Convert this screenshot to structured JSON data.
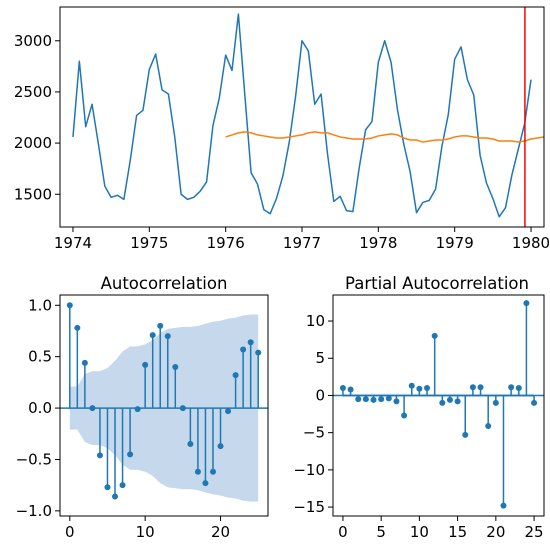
{
  "chart_data": [
    {
      "type": "line",
      "title": "",
      "xlabel": "",
      "ylabel": "",
      "xlim": [
        1973.83,
        1980.17
      ],
      "ylim": [
        1180,
        3330
      ],
      "x_ticks": [
        {
          "value": 1974,
          "label": "1974"
        },
        {
          "value": 1975,
          "label": "1975"
        },
        {
          "value": 1976,
          "label": "1976"
        },
        {
          "value": 1977,
          "label": "1977"
        },
        {
          "value": 1978,
          "label": "1978"
        },
        {
          "value": 1979,
          "label": "1979"
        },
        {
          "value": 1980,
          "label": "1980"
        }
      ],
      "y_ticks": [
        {
          "value": 1500,
          "label": "1500"
        },
        {
          "value": 2000,
          "label": "2000"
        },
        {
          "value": 2500,
          "label": "2500"
        },
        {
          "value": 3000,
          "label": "3000"
        }
      ],
      "vline": {
        "x": 1979.92,
        "color": "#ff0000"
      },
      "series": [
        {
          "color": "#1f77b4",
          "x_start": 1974.0,
          "x_step": 0.08333,
          "values": [
            2060,
            2800,
            2160,
            2380,
            1990,
            1580,
            1470,
            1490,
            1450,
            1830,
            2270,
            2320,
            2720,
            2870,
            2520,
            2480,
            2060,
            1500,
            1450,
            1470,
            1530,
            1620,
            2170,
            2440,
            2860,
            2710,
            3260,
            2480,
            1710,
            1600,
            1350,
            1310,
            1460,
            1680,
            2010,
            2460,
            3000,
            2900,
            2380,
            2480,
            1900,
            1430,
            1480,
            1340,
            1330,
            1760,
            2130,
            2210,
            2790,
            3000,
            2790,
            2330,
            1990,
            1720,
            1320,
            1420,
            1440,
            1550,
            1970,
            2280,
            2820,
            2940,
            2620,
            2470,
            1880,
            1610,
            1460,
            1280,
            1370,
            1690,
            1940,
            2190,
            2620
          ]
        },
        {
          "color": "#ff7f0e",
          "x_start": 1976.0,
          "x_step": 0.08333,
          "values": [
            2060,
            2080,
            2100,
            2110,
            2100,
            2080,
            2070,
            2060,
            2050,
            2050,
            2060,
            2070,
            2080,
            2100,
            2110,
            2100,
            2100,
            2080,
            2060,
            2050,
            2040,
            2040,
            2040,
            2050,
            2070,
            2080,
            2090,
            2080,
            2050,
            2030,
            2030,
            2010,
            2020,
            2030,
            2030,
            2040,
            2060,
            2070,
            2070,
            2060,
            2050,
            2050,
            2040,
            2020,
            2020,
            2020,
            2010,
            2020,
            2040,
            2050,
            2060
          ]
        }
      ]
    },
    {
      "type": "stem",
      "title": "Autocorrelation",
      "xlim": [
        -1.3,
        26.3
      ],
      "ylim": [
        -1.05,
        1.1
      ],
      "x_ticks": [
        {
          "value": 0,
          "label": "0"
        },
        {
          "value": 10,
          "label": "10"
        },
        {
          "value": 20,
          "label": "20"
        }
      ],
      "y_ticks": [
        {
          "value": -1.0,
          "label": "−1.0"
        },
        {
          "value": -0.5,
          "label": "−0.5"
        },
        {
          "value": 0.0,
          "label": "0.0"
        },
        {
          "value": 0.5,
          "label": "0.5"
        },
        {
          "value": 1.0,
          "label": "1.0"
        }
      ],
      "color": "#1f77b4",
      "confidence_color": "#c6d9ec",
      "lags": [
        0,
        1,
        2,
        3,
        4,
        5,
        6,
        7,
        8,
        9,
        10,
        11,
        12,
        13,
        14,
        15,
        16,
        17,
        18,
        19,
        20,
        21,
        22,
        23,
        24,
        25
      ],
      "values": [
        1.0,
        0.78,
        0.44,
        0.0,
        -0.46,
        -0.77,
        -0.86,
        -0.75,
        -0.45,
        -0.01,
        0.42,
        0.71,
        0.8,
        0.7,
        0.4,
        0.0,
        -0.35,
        -0.62,
        -0.73,
        -0.62,
        -0.37,
        -0.03,
        0.32,
        0.57,
        0.64,
        0.54
      ],
      "confidence_band": [
        0.21,
        0.21,
        0.33,
        0.36,
        0.36,
        0.39,
        0.46,
        0.55,
        0.6,
        0.6,
        0.62,
        0.66,
        0.73,
        0.77,
        0.78,
        0.79,
        0.79,
        0.8,
        0.82,
        0.84,
        0.85,
        0.87,
        0.88,
        0.9,
        0.91,
        0.91
      ]
    },
    {
      "type": "stem",
      "title": "Partial Autocorrelation",
      "xlim": [
        -1.3,
        26.3
      ],
      "ylim": [
        -16.2,
        13.5
      ],
      "x_ticks": [
        {
          "value": 0,
          "label": "0"
        },
        {
          "value": 5,
          "label": "5"
        },
        {
          "value": 10,
          "label": "10"
        },
        {
          "value": 15,
          "label": "15"
        },
        {
          "value": 20,
          "label": "20"
        },
        {
          "value": 25,
          "label": "25"
        }
      ],
      "y_ticks": [
        {
          "value": -15,
          "label": "−15"
        },
        {
          "value": -10,
          "label": "−10"
        },
        {
          "value": -5,
          "label": "−5"
        },
        {
          "value": 0,
          "label": "0"
        },
        {
          "value": 5,
          "label": "5"
        },
        {
          "value": 10,
          "label": "10"
        }
      ],
      "color": "#1f77b4",
      "confidence_color": "#c6d9ec",
      "lags": [
        0,
        1,
        2,
        3,
        4,
        5,
        6,
        7,
        8,
        9,
        10,
        11,
        12,
        13,
        14,
        15,
        16,
        17,
        18,
        19,
        20,
        21,
        22,
        23,
        24,
        25
      ],
      "values": [
        1.0,
        0.8,
        -0.5,
        -0.5,
        -0.6,
        -0.5,
        -0.4,
        -0.8,
        -2.7,
        1.3,
        0.9,
        1.0,
        8.0,
        -1.0,
        -0.6,
        -0.8,
        -5.3,
        1.1,
        1.1,
        -4.1,
        -1.0,
        -14.8,
        1.1,
        1.0,
        12.4,
        -1.0
      ],
      "confidence_band": [
        0.21,
        0.21,
        0.21,
        0.21,
        0.21,
        0.21,
        0.21,
        0.21,
        0.21,
        0.21,
        0.21,
        0.21,
        0.21,
        0.21,
        0.21,
        0.21,
        0.21,
        0.21,
        0.21,
        0.21,
        0.21,
        0.21,
        0.21,
        0.21,
        0.21,
        0.21
      ]
    }
  ]
}
